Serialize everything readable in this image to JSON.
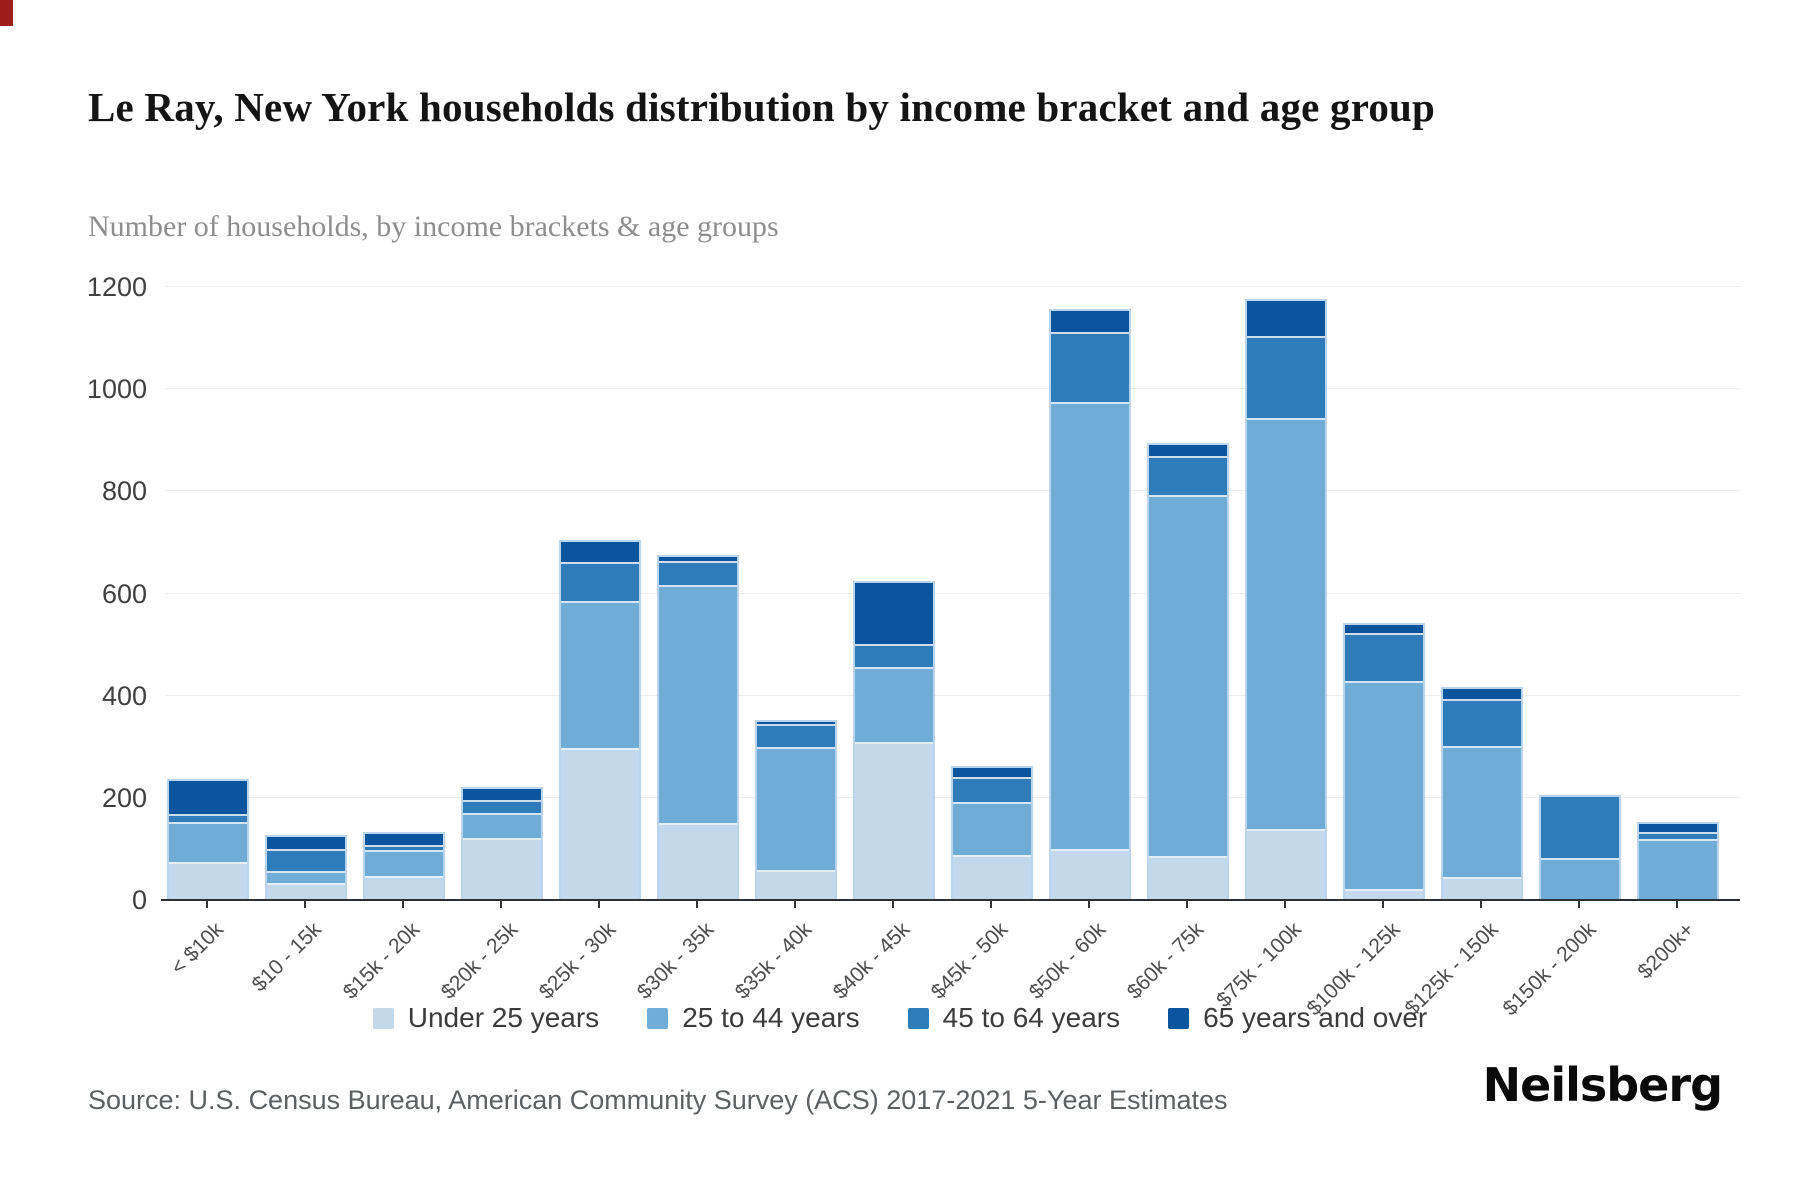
{
  "page": {
    "corner_mark_color": "#9d1c1c"
  },
  "header": {
    "title": "Le Ray, New York households distribution by income bracket and age group",
    "subtitle": "Number of households, by income brackets & age groups"
  },
  "chart_data": {
    "type": "bar",
    "stacked": true,
    "title": "Le Ray, New York households distribution by income bracket and age group",
    "xlabel": "",
    "ylabel": "",
    "ylim": [
      0,
      1200
    ],
    "y_ticks": [
      0,
      200,
      400,
      600,
      800,
      1000,
      1200
    ],
    "grid": true,
    "legend_position": "bottom",
    "categories": [
      "< $10k",
      "$10 - 15k",
      "$15k - 20k",
      "$20k - 25k",
      "$25k - 30k",
      "$30k - 35k",
      "$35k - 40k",
      "$40k - 45k",
      "$45k - 50k",
      "$50k - 60k",
      "$60k - 75k",
      "$75k - 100k",
      "$100k - 125k",
      "$125k - 150k",
      "$150k - 200k",
      "$200k+"
    ],
    "series": [
      {
        "name": "Under 25 years",
        "color": "#c3d8ea",
        "values": [
          71,
          29,
          44,
          117,
          293,
          147,
          55,
          306,
          84,
          95,
          82,
          135,
          18,
          41,
          0,
          0
        ]
      },
      {
        "name": "25 to 44 years",
        "color": "#6fadd6",
        "values": [
          77,
          23,
          50,
          49,
          289,
          465,
          240,
          147,
          104,
          876,
          706,
          804,
          406,
          257,
          78,
          116
        ]
      },
      {
        "name": "45 to 64 years",
        "color": "#2e7cba",
        "values": [
          16,
          44,
          10,
          26,
          75,
          47,
          45,
          45,
          49,
          137,
          77,
          162,
          94,
          92,
          124,
          13
        ]
      },
      {
        "name": "65 years and over",
        "color": "#0b549e",
        "values": [
          69,
          27,
          25,
          26,
          43,
          12,
          8,
          122,
          22,
          45,
          25,
          71,
          21,
          24,
          0,
          20
        ]
      }
    ],
    "totals": [
      233,
      123,
      129,
      218,
      700,
      671,
      348,
      620,
      259,
      1153,
      890,
      1172,
      539,
      414,
      202,
      149
    ]
  },
  "footer": {
    "source": "Source: U.S. Census Bureau, American Community Survey (ACS) 2017-2021 5-Year Estimates",
    "logo": "Neilsberg"
  }
}
